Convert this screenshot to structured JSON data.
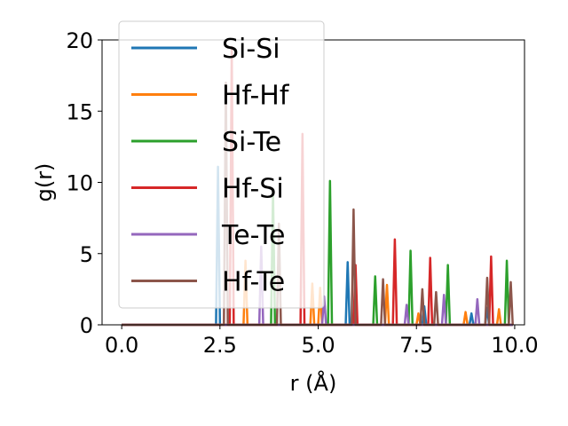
{
  "chart_data": {
    "type": "line",
    "xlabel": "r (Å)",
    "ylabel": "g(r)",
    "xlim": [
      -0.5,
      10.25
    ],
    "ylim": [
      0,
      20
    ],
    "xticks": [
      0.0,
      2.5,
      5.0,
      7.5,
      10.0
    ],
    "xtick_labels": [
      "0.0",
      "2.5",
      "5.0",
      "7.5",
      "10.0"
    ],
    "yticks": [
      0,
      5,
      10,
      15,
      20
    ],
    "ytick_labels": [
      "0",
      "5",
      "10",
      "15",
      "20"
    ],
    "grid": false,
    "legend_position": "top-left",
    "series": [
      {
        "name": "Si-Si",
        "color": "#1f77b4",
        "peaks": [
          [
            2.45,
            11.1
          ],
          [
            5.75,
            4.4
          ],
          [
            7.7,
            1.3
          ],
          [
            8.9,
            0.8
          ],
          [
            9.3,
            1.2
          ]
        ]
      },
      {
        "name": "Hf-Hf",
        "color": "#ff7f0e",
        "peaks": [
          [
            3.15,
            4.5
          ],
          [
            4.85,
            2.9
          ],
          [
            5.05,
            2.6
          ],
          [
            6.75,
            2.8
          ],
          [
            7.55,
            0.8
          ],
          [
            8.75,
            0.9
          ],
          [
            9.6,
            1.1
          ]
        ]
      },
      {
        "name": "Si-Te",
        "color": "#2ca02c",
        "peaks": [
          [
            3.85,
            9.5
          ],
          [
            5.3,
            10.1
          ],
          [
            6.45,
            3.4
          ],
          [
            7.35,
            5.2
          ],
          [
            8.3,
            4.2
          ],
          [
            9.8,
            4.5
          ]
        ]
      },
      {
        "name": "Hf-Si",
        "color": "#d62728",
        "peaks": [
          [
            2.8,
            19.5
          ],
          [
            4.6,
            13.4
          ],
          [
            5.95,
            4.2
          ],
          [
            6.95,
            6.0
          ],
          [
            7.85,
            4.7
          ],
          [
            9.4,
            4.8
          ]
        ]
      },
      {
        "name": "Te-Te",
        "color": "#9467bd",
        "peaks": [
          [
            3.55,
            5.5
          ],
          [
            5.15,
            2.0
          ],
          [
            7.25,
            1.4
          ],
          [
            8.2,
            2.1
          ],
          [
            9.05,
            1.8
          ]
        ]
      },
      {
        "name": "Hf-Te",
        "color": "#8c564b",
        "peaks": [
          [
            2.65,
            17.0
          ],
          [
            4.0,
            7.1
          ],
          [
            5.9,
            8.1
          ],
          [
            6.65,
            3.2
          ],
          [
            7.65,
            2.5
          ],
          [
            8.0,
            2.3
          ],
          [
            9.3,
            3.3
          ],
          [
            9.9,
            3.0
          ]
        ]
      }
    ]
  }
}
